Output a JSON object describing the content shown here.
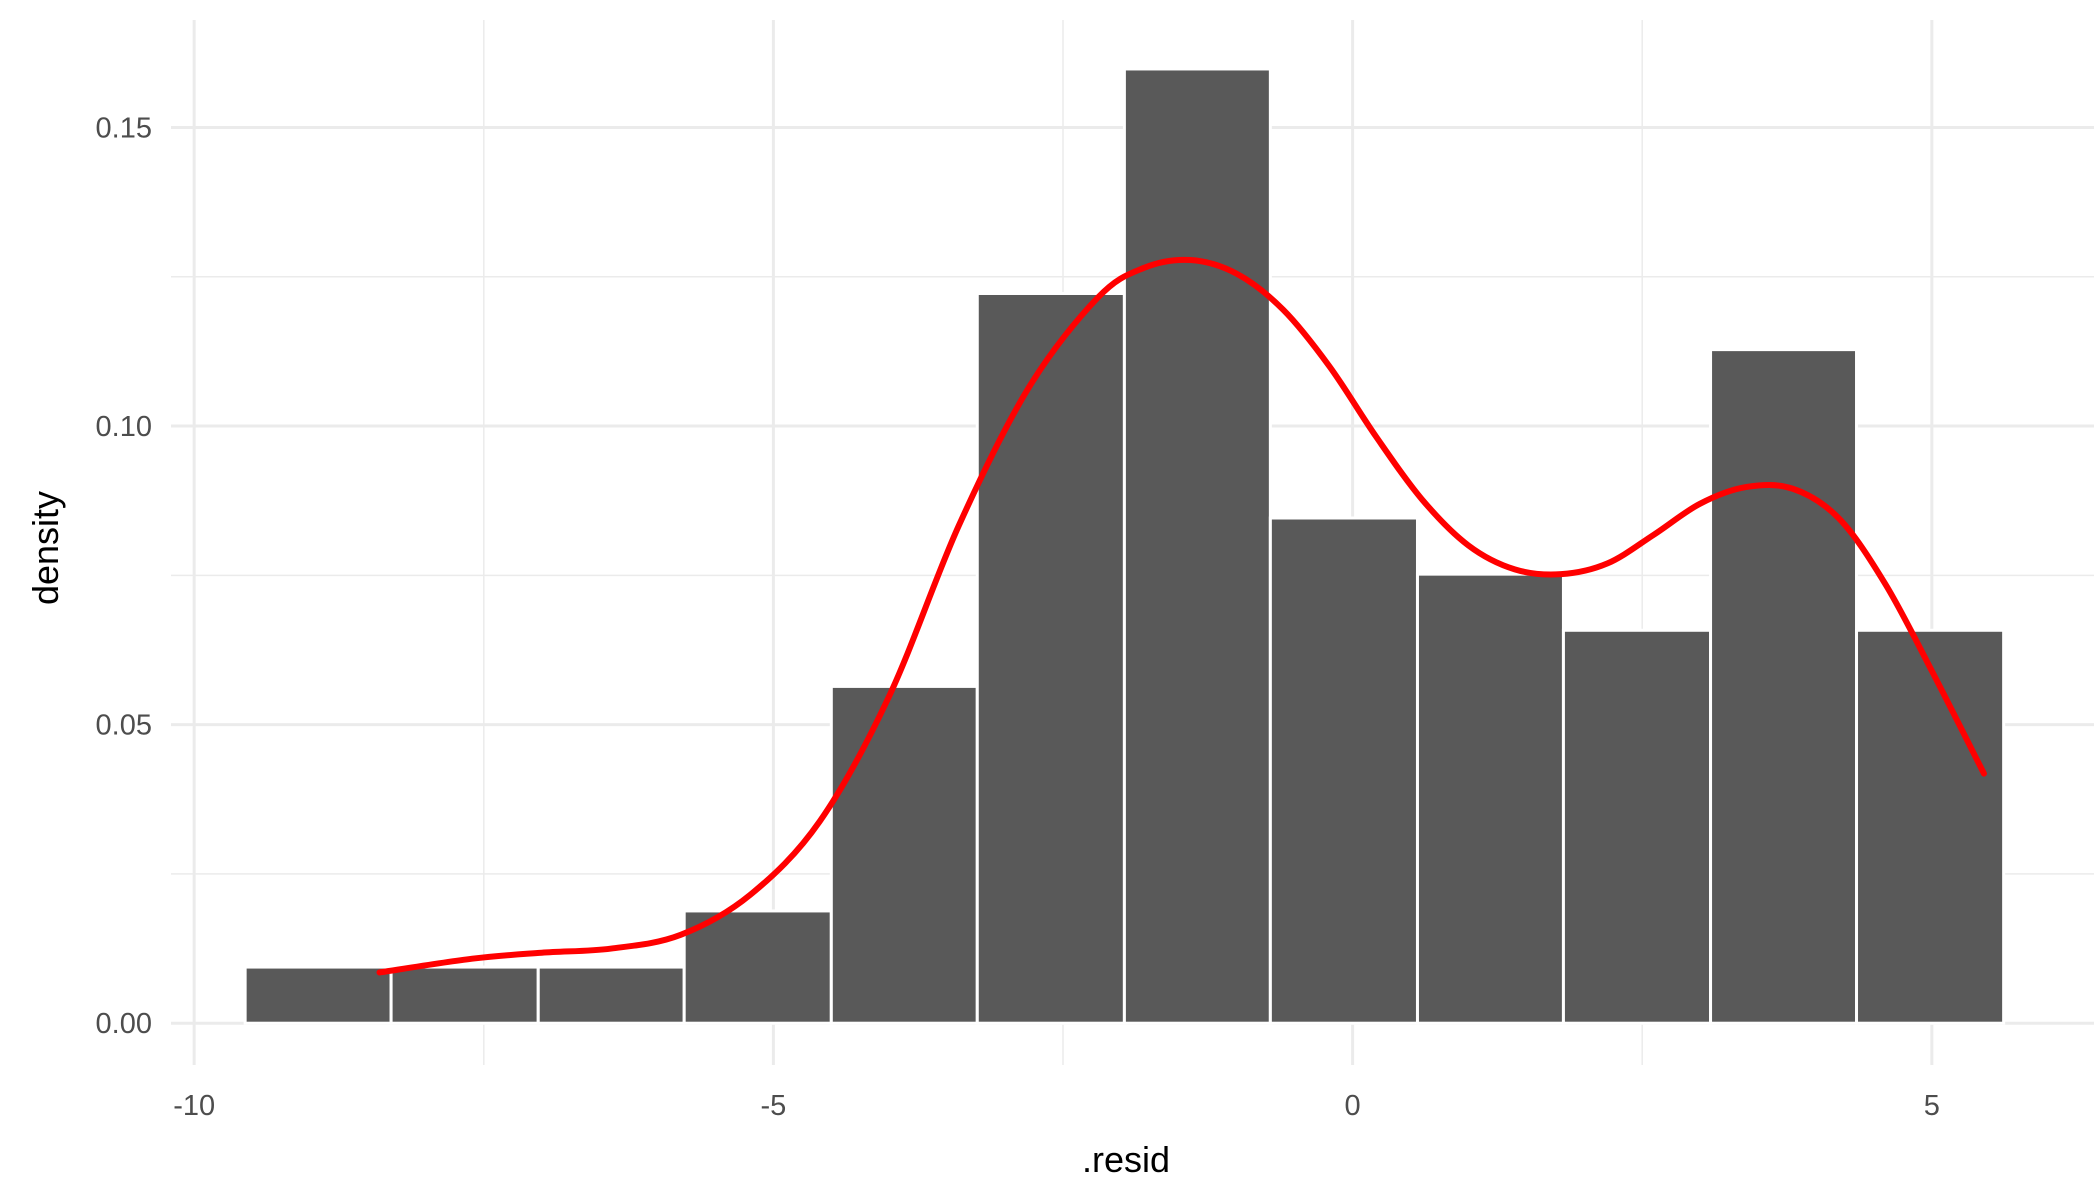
{
  "chart_data": {
    "type": "bar",
    "subtype": "histogram-with-density",
    "xlabel": ".resid",
    "ylabel": "density",
    "xlim": [
      -10.2,
      6.4
    ],
    "ylim": [
      -0.007,
      0.168
    ],
    "x_ticks": [
      -10,
      -5,
      0,
      5
    ],
    "x_tick_labels": [
      "-10",
      "-5",
      "0",
      "5"
    ],
    "y_ticks": [
      0.0,
      0.05,
      0.1,
      0.15
    ],
    "y_tick_labels": [
      "0.00",
      "0.05",
      "0.10",
      "0.15"
    ],
    "grid": true,
    "bin_width": 1.2647,
    "bins": [
      {
        "x0": -9.56,
        "x1": -8.3,
        "density": 0.0094
      },
      {
        "x0": -8.3,
        "x1": -7.03,
        "density": 0.0094
      },
      {
        "x0": -7.03,
        "x1": -5.77,
        "density": 0.0094
      },
      {
        "x0": -5.77,
        "x1": -4.5,
        "density": 0.0188
      },
      {
        "x0": -4.5,
        "x1": -3.24,
        "density": 0.0564
      },
      {
        "x0": -3.24,
        "x1": -1.97,
        "density": 0.1222
      },
      {
        "x0": -1.97,
        "x1": -0.71,
        "density": 0.1598
      },
      {
        "x0": -0.71,
        "x1": 0.56,
        "density": 0.0846
      },
      {
        "x0": 0.56,
        "x1": 1.82,
        "density": 0.0752
      },
      {
        "x0": 1.82,
        "x1": 3.09,
        "density": 0.0658
      },
      {
        "x0": 3.09,
        "x1": 4.35,
        "density": 0.1128
      },
      {
        "x0": 4.35,
        "x1": 5.62,
        "density": 0.0658
      }
    ],
    "density_curve": {
      "color": "#ff0000",
      "x": [
        -8.4,
        -7.6,
        -7.0,
        -6.4,
        -5.8,
        -5.2,
        -4.6,
        -4.0,
        -3.4,
        -2.8,
        -2.2,
        -1.8,
        -1.4,
        -1.0,
        -0.6,
        -0.2,
        0.2,
        0.6,
        1.0,
        1.4,
        1.8,
        2.2,
        2.6,
        3.0,
        3.4,
        3.8,
        4.2,
        4.6,
        5.0,
        5.45
      ],
      "y": [
        0.0085,
        0.0108,
        0.0118,
        0.0125,
        0.0148,
        0.0215,
        0.0338,
        0.0548,
        0.0833,
        0.1063,
        0.1215,
        0.1265,
        0.1278,
        0.1255,
        0.1195,
        0.11,
        0.0983,
        0.0877,
        0.08,
        0.076,
        0.0752,
        0.077,
        0.0818,
        0.087,
        0.0898,
        0.0895,
        0.0845,
        0.0735,
        0.059,
        0.0418
      ]
    }
  }
}
